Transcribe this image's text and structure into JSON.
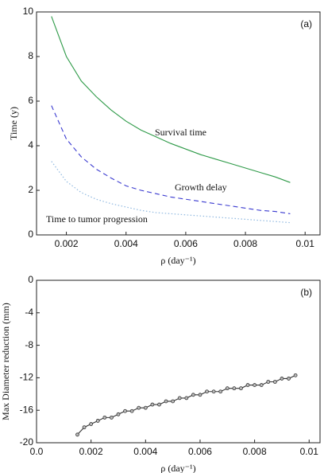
{
  "chart_data": [
    {
      "type": "line",
      "panel_label": "(a)",
      "ylabel": "Time (y)",
      "xlabel": "ρ (day⁻¹)",
      "xlim": [
        0.001,
        0.0105
      ],
      "xticks": [
        0.002,
        0.004,
        0.006,
        0.008,
        0.01
      ],
      "ylim": [
        0,
        10
      ],
      "yticks": [
        0,
        2,
        4,
        6,
        8,
        10
      ],
      "grid": false,
      "x": [
        0.0015,
        0.002,
        0.0025,
        0.003,
        0.0035,
        0.004,
        0.0045,
        0.005,
        0.0055,
        0.006,
        0.0065,
        0.007,
        0.0075,
        0.008,
        0.0085,
        0.009,
        0.0095
      ],
      "series": [
        {
          "name": "Survival time",
          "color": "#2e9a48",
          "linestyle": "solid",
          "values": [
            9.8,
            8.0,
            6.9,
            6.2,
            5.6,
            5.1,
            4.7,
            4.4,
            4.1,
            3.85,
            3.6,
            3.4,
            3.2,
            3.0,
            2.8,
            2.6,
            2.35
          ]
        },
        {
          "name": "Growth delay",
          "color": "#3a3ad0",
          "linestyle": "dashed",
          "values": [
            5.8,
            4.3,
            3.5,
            2.95,
            2.55,
            2.2,
            2.0,
            1.85,
            1.7,
            1.6,
            1.5,
            1.4,
            1.3,
            1.2,
            1.1,
            1.05,
            0.95
          ]
        },
        {
          "name": "Time to tumor progression",
          "color": "#8fb8e0",
          "linestyle": "dotted",
          "values": [
            3.3,
            2.4,
            1.9,
            1.6,
            1.4,
            1.25,
            1.1,
            1.0,
            0.95,
            0.9,
            0.85,
            0.8,
            0.75,
            0.7,
            0.65,
            0.6,
            0.55
          ]
        }
      ]
    },
    {
      "type": "line",
      "panel_label": "(b)",
      "ylabel": "Max Diameter reduction (mm)",
      "xlabel": "ρ (day⁻¹)",
      "xlim": [
        0,
        0.0104
      ],
      "xticks": [
        {
          "value": 0,
          "label": "0.0"
        },
        0.002,
        0.004,
        0.006,
        0.008,
        0.01
      ],
      "ylim": [
        -20,
        0
      ],
      "yticks": [
        -20,
        -16,
        -12,
        -8,
        -4,
        0
      ],
      "grid": false,
      "x": [
        0.0015,
        0.00175,
        0.002,
        0.00225,
        0.0025,
        0.00275,
        0.003,
        0.00325,
        0.0035,
        0.00375,
        0.004,
        0.00425,
        0.0045,
        0.00475,
        0.005,
        0.00525,
        0.0055,
        0.00575,
        0.006,
        0.00625,
        0.0065,
        0.00675,
        0.007,
        0.00725,
        0.0075,
        0.00775,
        0.008,
        0.00825,
        0.0085,
        0.00875,
        0.009,
        0.00925,
        0.0095
      ],
      "series": [
        {
          "color": "#333333",
          "linestyle": "solid",
          "marker": "circle",
          "values": [
            -19.0,
            -18.1,
            -17.7,
            -17.3,
            -16.9,
            -16.9,
            -16.5,
            -16.1,
            -16.1,
            -15.7,
            -15.7,
            -15.3,
            -15.3,
            -14.9,
            -14.9,
            -14.5,
            -14.5,
            -14.1,
            -14.1,
            -13.7,
            -13.7,
            -13.7,
            -13.3,
            -13.3,
            -13.3,
            -12.9,
            -12.9,
            -12.9,
            -12.5,
            -12.5,
            -12.1,
            -12.1,
            -11.7
          ]
        }
      ]
    }
  ]
}
